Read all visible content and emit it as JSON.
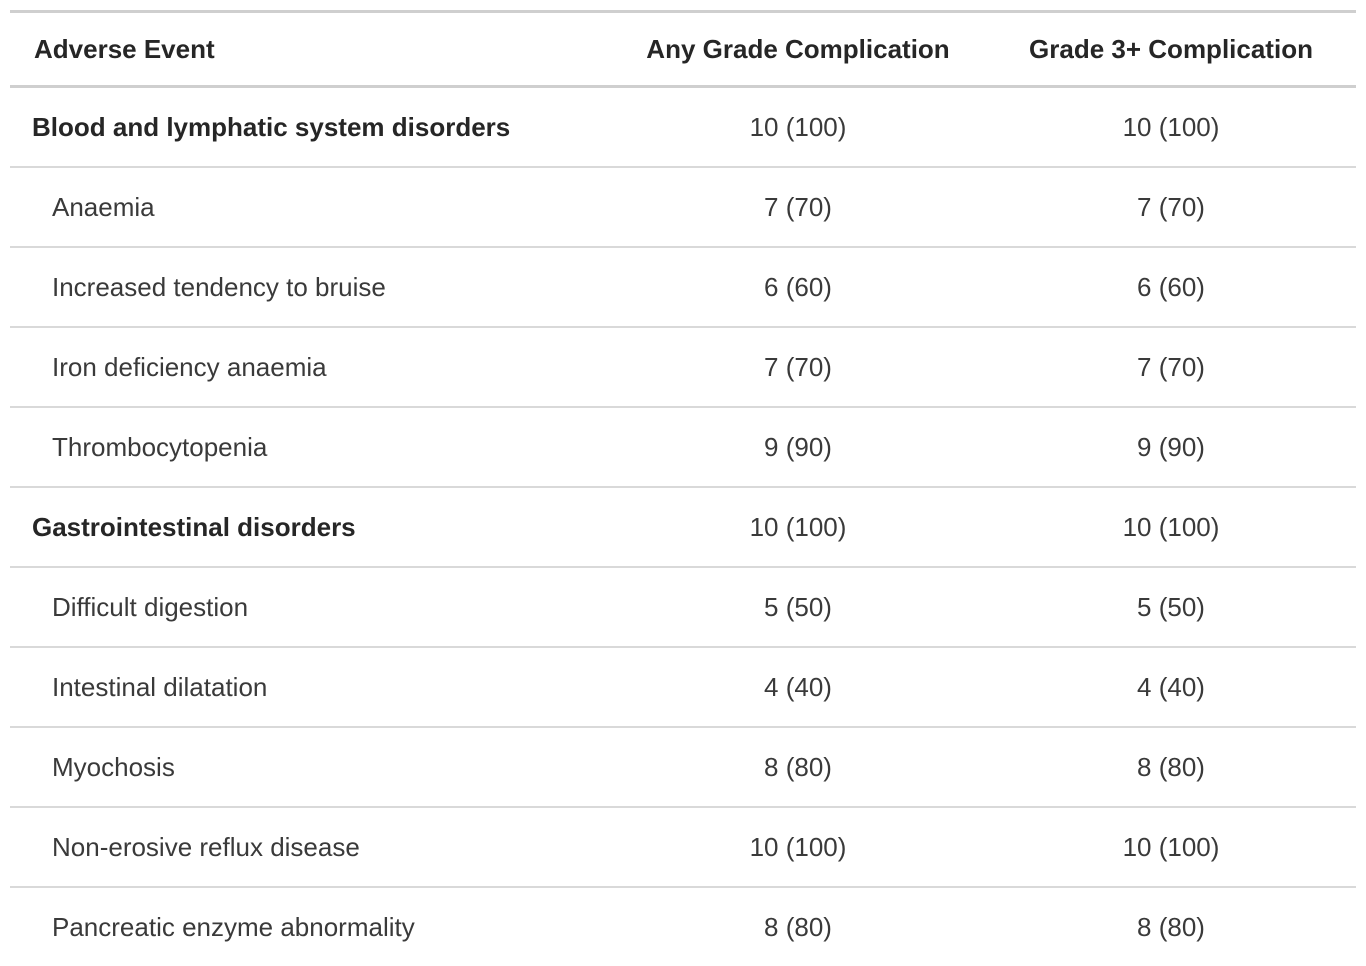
{
  "colors": {
    "background": "#ffffff",
    "text_bold": "#262626",
    "text_regular": "#3a3a3a",
    "border_heavy": "#cfcfcf",
    "border_light": "#d9d9d9"
  },
  "chart_data": {
    "type": "table",
    "title": "",
    "legend": null,
    "grid": "horizontal-rules-only",
    "columns": [
      {
        "label": "Adverse Event",
        "align": "left"
      },
      {
        "label": "Any Grade Complication",
        "align": "center"
      },
      {
        "label": "Grade 3+ Complication",
        "align": "center"
      }
    ],
    "rows": [
      {
        "label": "Blood and lymphatic system disorders",
        "group": true,
        "values": [
          "10 (100)",
          "10 (100)"
        ]
      },
      {
        "label": "Anaemia",
        "group": false,
        "values": [
          "7 (70)",
          "7 (70)"
        ]
      },
      {
        "label": "Increased tendency to bruise",
        "group": false,
        "values": [
          "6 (60)",
          "6 (60)"
        ]
      },
      {
        "label": "Iron deficiency anaemia",
        "group": false,
        "values": [
          "7 (70)",
          "7 (70)"
        ]
      },
      {
        "label": "Thrombocytopenia",
        "group": false,
        "values": [
          "9 (90)",
          "9 (90)"
        ]
      },
      {
        "label": "Gastrointestinal disorders",
        "group": true,
        "values": [
          "10 (100)",
          "10 (100)"
        ]
      },
      {
        "label": "Difficult digestion",
        "group": false,
        "values": [
          "5 (50)",
          "5 (50)"
        ]
      },
      {
        "label": "Intestinal dilatation",
        "group": false,
        "values": [
          "4 (40)",
          "4 (40)"
        ]
      },
      {
        "label": "Myochosis",
        "group": false,
        "values": [
          "8 (80)",
          "8 (80)"
        ]
      },
      {
        "label": "Non-erosive reflux disease",
        "group": false,
        "values": [
          "10 (100)",
          "10 (100)"
        ]
      },
      {
        "label": "Pancreatic enzyme abnormality",
        "group": false,
        "values": [
          "8 (80)",
          "8 (80)"
        ]
      }
    ]
  }
}
